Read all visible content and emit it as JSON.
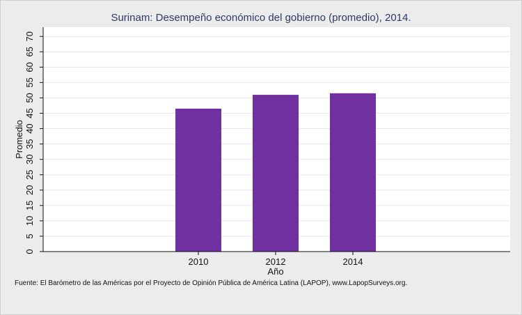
{
  "chart_data": {
    "type": "bar",
    "title": "Surinam: Desempeño económico del gobierno (promedio), 2014.",
    "xlabel": "Año",
    "ylabel": "Promedio",
    "categories": [
      "2010",
      "2012",
      "2014"
    ],
    "values": [
      46.5,
      51.0,
      51.5
    ],
    "ylim": [
      0,
      73
    ],
    "yticks": [
      0,
      5,
      10,
      15,
      20,
      25,
      30,
      35,
      40,
      45,
      50,
      55,
      60,
      65,
      70
    ],
    "ytick_labels": [
      "0",
      "5",
      "10",
      "15",
      "20",
      "25",
      "30",
      "35",
      "40",
      "45",
      "50",
      "55",
      "60",
      "65",
      "70"
    ],
    "grid": true,
    "colors": {
      "bar": "#7030a0",
      "plot_bg": "#ffffff",
      "page_bg": "#ececec",
      "grid": "#e6e6e6",
      "title": "#2a3a66"
    }
  },
  "footer": {
    "source": "Fuente: El Barómetro de las Américas por el Proyecto de Opinión Pública de América Latina (LAPOP), www.LapopSurveys.org."
  }
}
